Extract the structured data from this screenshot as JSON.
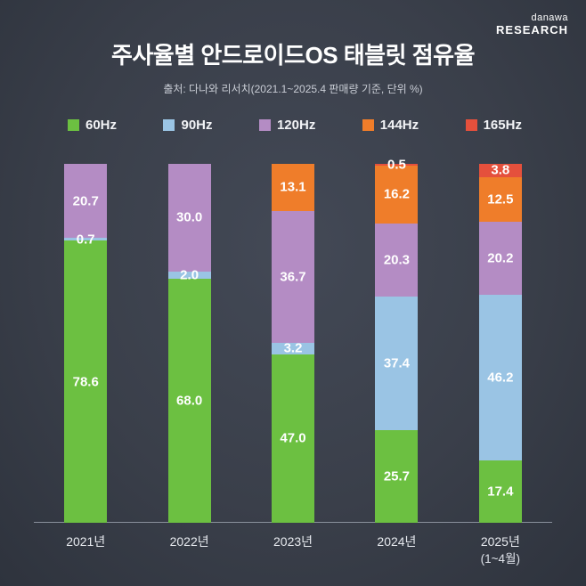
{
  "logo": {
    "line1": "danawa",
    "line2": "RESEARCH"
  },
  "title": "주사율별 안드로이드OS 태블릿 점유율",
  "subtitle": "출처: 다나와 리서치(2021.1~2025.4 판매량 기준, 단위 %)",
  "colors": {
    "background": "#3a3f4a",
    "axis_line": "#99a0ab",
    "text_primary": "#ffffff",
    "text_secondary": "#c9cdd5"
  },
  "chart_data": {
    "type": "bar",
    "stacked": true,
    "unit": "%",
    "title": "주사율별 안드로이드OS 태블릿 점유율",
    "source_note": "출처: 다나와 리서치(2021.1~2025.4 판매량 기준, 단위 %)",
    "legend_position": "top",
    "value_labels": true,
    "ylim": [
      0,
      100
    ],
    "categories": [
      {
        "label": "2021년",
        "sublabel": null
      },
      {
        "label": "2022년",
        "sublabel": null
      },
      {
        "label": "2023년",
        "sublabel": null
      },
      {
        "label": "2024년",
        "sublabel": null
      },
      {
        "label": "2025년",
        "sublabel": "(1~4월)"
      }
    ],
    "series": [
      {
        "name": "60Hz",
        "color": "#6cc041",
        "values": [
          78.6,
          68.0,
          47.0,
          25.7,
          17.4
        ]
      },
      {
        "name": "90Hz",
        "color": "#9ac4e4",
        "values": [
          0.7,
          2.0,
          3.2,
          37.4,
          46.2
        ]
      },
      {
        "name": "120Hz",
        "color": "#b48cc4",
        "values": [
          20.7,
          30.0,
          36.7,
          20.3,
          20.2
        ]
      },
      {
        "name": "144Hz",
        "color": "#ef7d2a",
        "values": [
          null,
          null,
          13.1,
          16.2,
          12.5
        ]
      },
      {
        "name": "165Hz",
        "color": "#e5503c",
        "values": [
          null,
          null,
          null,
          0.5,
          3.8
        ]
      }
    ]
  }
}
